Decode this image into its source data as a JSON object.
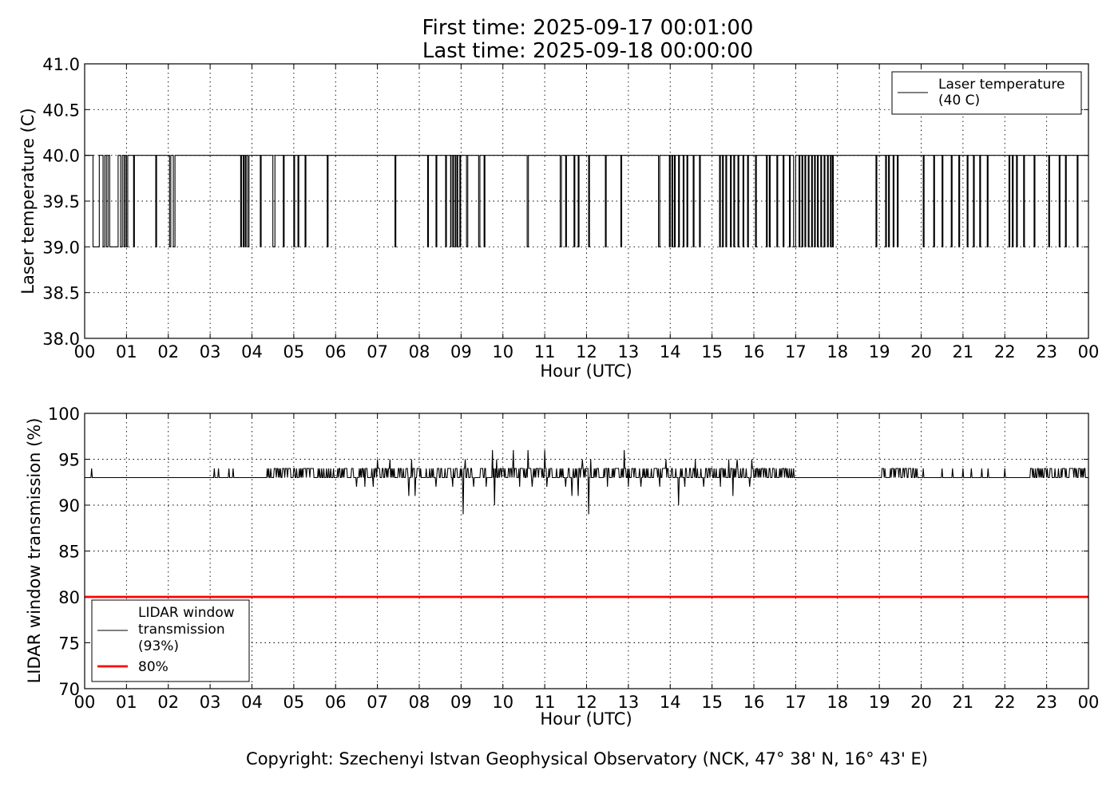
{
  "figure": {
    "title_line1": "First time: 2025-09-17 00:01:00",
    "title_line2": "Last time: 2025-09-18 00:00:00",
    "copyright": "Copyright: Szechenyi Istvan Geophysical Observatory (NCK, 47° 38' N, 16° 43' E)"
  },
  "chart_data": [
    {
      "type": "line",
      "xlabel": "Hour (UTC)",
      "ylabel": "Laser temperature (C)",
      "xlim": [
        0,
        24
      ],
      "ylim": [
        38.0,
        41.0
      ],
      "x_tick_labels": [
        "00",
        "01",
        "02",
        "03",
        "04",
        "05",
        "06",
        "07",
        "08",
        "09",
        "10",
        "11",
        "12",
        "13",
        "14",
        "15",
        "16",
        "17",
        "18",
        "19",
        "20",
        "21",
        "22",
        "23",
        "00"
      ],
      "y_ticks": [
        38.0,
        38.5,
        39.0,
        39.5,
        40.0,
        40.5,
        41.0
      ],
      "y_tick_labels": [
        "38.0",
        "38.5",
        "39.0",
        "39.5",
        "40.0",
        "40.5",
        "41.0"
      ],
      "grid": true,
      "legend_position": "upper right",
      "series": [
        {
          "name": "Laser temperature\n(40 C)",
          "color": "#000000",
          "baseline": 40.0,
          "drop_value": 39.0,
          "description_of_values": "Mostly 40.0 C with frequent brief drops to 39.0 C",
          "drops": [
            [
              0.2,
              0.35
            ],
            [
              0.44,
              0.48
            ],
            [
              0.52,
              0.56
            ],
            [
              0.6,
              0.8
            ],
            [
              0.86,
              0.9
            ],
            [
              0.94,
              0.97
            ],
            [
              1.0,
              1.03
            ],
            [
              1.17,
              1.19
            ],
            [
              1.7,
              1.72
            ],
            [
              2.03,
              2.06
            ],
            [
              2.12,
              2.16
            ],
            [
              3.73,
              3.75
            ],
            [
              3.79,
              3.81
            ],
            [
              3.84,
              3.86
            ],
            [
              3.9,
              3.93
            ],
            [
              4.2,
              4.22
            ],
            [
              4.5,
              4.55
            ],
            [
              4.75,
              4.77
            ],
            [
              5.0,
              5.02
            ],
            [
              5.1,
              5.12
            ],
            [
              5.27,
              5.29
            ],
            [
              5.8,
              5.82
            ],
            [
              7.42,
              7.44
            ],
            [
              8.2,
              8.22
            ],
            [
              8.4,
              8.42
            ],
            [
              8.63,
              8.65
            ],
            [
              8.75,
              8.76
            ],
            [
              8.8,
              8.82
            ],
            [
              8.86,
              8.87
            ],
            [
              8.9,
              8.92
            ],
            [
              8.97,
              8.99
            ],
            [
              9.13,
              9.16
            ],
            [
              9.42,
              9.45
            ],
            [
              9.55,
              9.57
            ],
            [
              10.58,
              10.61
            ],
            [
              11.37,
              11.4
            ],
            [
              11.5,
              11.52
            ],
            [
              11.7,
              11.72
            ],
            [
              11.8,
              11.82
            ],
            [
              12.05,
              12.07
            ],
            [
              12.45,
              12.47
            ],
            [
              12.82,
              12.84
            ],
            [
              13.72,
              13.75
            ],
            [
              13.98,
              14.0
            ],
            [
              14.04,
              14.06
            ],
            [
              14.1,
              14.12
            ],
            [
              14.2,
              14.22
            ],
            [
              14.31,
              14.33
            ],
            [
              14.4,
              14.42
            ],
            [
              14.55,
              14.57
            ],
            [
              14.7,
              14.72
            ],
            [
              15.18,
              15.2
            ],
            [
              15.25,
              15.27
            ],
            [
              15.33,
              15.35
            ],
            [
              15.44,
              15.46
            ],
            [
              15.52,
              15.54
            ],
            [
              15.62,
              15.64
            ],
            [
              15.74,
              15.76
            ],
            [
              15.85,
              15.87
            ],
            [
              16.04,
              16.06
            ],
            [
              16.3,
              16.32
            ],
            [
              16.37,
              16.39
            ],
            [
              16.55,
              16.57
            ],
            [
              16.7,
              16.72
            ],
            [
              16.85,
              16.87
            ],
            [
              16.95,
              17.0
            ],
            [
              17.08,
              17.1
            ],
            [
              17.15,
              17.17
            ],
            [
              17.22,
              17.24
            ],
            [
              17.3,
              17.32
            ],
            [
              17.38,
              17.4
            ],
            [
              17.45,
              17.47
            ],
            [
              17.52,
              17.54
            ],
            [
              17.6,
              17.62
            ],
            [
              17.68,
              17.7
            ],
            [
              17.76,
              17.78
            ],
            [
              17.83,
              17.85
            ],
            [
              17.88,
              17.9
            ],
            [
              18.92,
              18.94
            ],
            [
              19.15,
              19.17
            ],
            [
              19.22,
              19.24
            ],
            [
              19.33,
              19.35
            ],
            [
              19.43,
              19.45
            ],
            [
              20.05,
              20.07
            ],
            [
              20.3,
              20.32
            ],
            [
              20.5,
              20.52
            ],
            [
              20.72,
              20.74
            ],
            [
              20.9,
              20.92
            ],
            [
              21.1,
              21.12
            ],
            [
              21.25,
              21.27
            ],
            [
              21.4,
              21.42
            ],
            [
              21.58,
              21.6
            ],
            [
              22.1,
              22.12
            ],
            [
              22.18,
              22.2
            ],
            [
              22.28,
              22.3
            ],
            [
              22.45,
              22.47
            ],
            [
              22.7,
              22.72
            ],
            [
              23.05,
              23.07
            ],
            [
              23.3,
              23.32
            ],
            [
              23.45,
              23.47
            ],
            [
              23.73,
              23.75
            ]
          ]
        }
      ]
    },
    {
      "type": "line",
      "xlabel": "Hour (UTC)",
      "ylabel": "LIDAR window transmission (%)",
      "xlim": [
        0,
        24
      ],
      "ylim": [
        70,
        100
      ],
      "x_tick_labels": [
        "00",
        "01",
        "02",
        "03",
        "04",
        "05",
        "06",
        "07",
        "08",
        "09",
        "10",
        "11",
        "12",
        "13",
        "14",
        "15",
        "16",
        "17",
        "18",
        "19",
        "20",
        "21",
        "22",
        "23",
        "00"
      ],
      "y_ticks": [
        70,
        75,
        80,
        85,
        90,
        95,
        100
      ],
      "y_tick_labels": [
        "70",
        "75",
        "80",
        "85",
        "90",
        "95",
        "100"
      ],
      "grid": true,
      "legend_position": "lower left",
      "series": [
        {
          "name": "LIDAR window\ntransmission\n(93%)",
          "color": "#000000",
          "baseline": 93,
          "description_of_values": "Mostly 93 % with frequent 94 % blips; noisy between 07:00 and 15:00 with values from 89 to 96 %",
          "events": [
            [
              0.17,
              94
            ],
            [
              3.1,
              94
            ],
            [
              3.2,
              94
            ],
            [
              3.45,
              94
            ],
            [
              3.55,
              94
            ],
            [
              4.4,
              94
            ],
            [
              4.55,
              94
            ],
            [
              4.65,
              94
            ],
            [
              4.8,
              94
            ],
            [
              4.9,
              94
            ],
            [
              6.5,
              92
            ],
            [
              6.7,
              92
            ],
            [
              6.9,
              92
            ],
            [
              7.0,
              95
            ],
            [
              7.3,
              95
            ],
            [
              7.75,
              91
            ],
            [
              7.82,
              95
            ],
            [
              7.9,
              91
            ],
            [
              8.4,
              92
            ],
            [
              8.8,
              92
            ],
            [
              9.05,
              89
            ],
            [
              9.1,
              95
            ],
            [
              9.3,
              92
            ],
            [
              9.6,
              92
            ],
            [
              9.75,
              96
            ],
            [
              9.8,
              90
            ],
            [
              9.85,
              95
            ],
            [
              10.1,
              93
            ],
            [
              10.25,
              96
            ],
            [
              10.4,
              92
            ],
            [
              10.6,
              96
            ],
            [
              10.7,
              92
            ],
            [
              10.85,
              93
            ],
            [
              11.0,
              96
            ],
            [
              11.05,
              92
            ],
            [
              11.5,
              92
            ],
            [
              11.65,
              91
            ],
            [
              11.8,
              91
            ],
            [
              11.9,
              95
            ],
            [
              12.05,
              89
            ],
            [
              12.1,
              95
            ],
            [
              12.5,
              92
            ],
            [
              12.9,
              96
            ],
            [
              13.0,
              92
            ],
            [
              13.3,
              92
            ],
            [
              13.75,
              92
            ],
            [
              13.9,
              95
            ],
            [
              14.2,
              90
            ],
            [
              14.35,
              92
            ],
            [
              14.6,
              95
            ],
            [
              14.8,
              92
            ],
            [
              15.2,
              92
            ],
            [
              15.4,
              95
            ],
            [
              15.5,
              91
            ],
            [
              15.6,
              95
            ],
            [
              15.9,
              92
            ],
            [
              15.95,
              95
            ],
            [
              19.1,
              94
            ],
            [
              19.5,
              94
            ],
            [
              19.8,
              94
            ],
            [
              20.05,
              94
            ],
            [
              20.5,
              94
            ],
            [
              20.75,
              94
            ],
            [
              21.0,
              94
            ],
            [
              21.2,
              94
            ],
            [
              21.45,
              94
            ],
            [
              21.6,
              94
            ],
            [
              22.0,
              94
            ]
          ],
          "dense_blip_ranges": [
            [
              4.35,
              7.0
            ],
            [
              7.0,
              15.9
            ],
            [
              15.9,
              16.95
            ],
            [
              19.0,
              19.9
            ],
            [
              22.6,
              23.95
            ]
          ]
        },
        {
          "name": "80%",
          "color": "#ff0000",
          "values_constant": 80
        }
      ]
    }
  ]
}
